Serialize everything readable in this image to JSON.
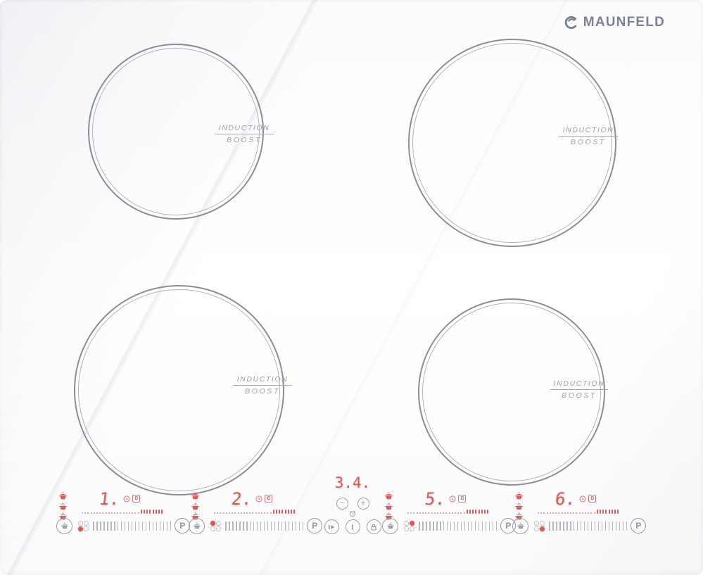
{
  "brand": {
    "name": "MAUNFELD"
  },
  "colors": {
    "accent_red": "#df5552",
    "ring_gray": "#8a8e99",
    "label_gray": "#9aa1ab",
    "logo_gray": "#7b8290"
  },
  "burners": [
    {
      "position": "back-left",
      "line1": "INDUCTION",
      "line2": "BOOST"
    },
    {
      "position": "back-right",
      "line1": "INDUCTION",
      "line2": "BOOST"
    },
    {
      "position": "front-left",
      "line1": "INDUCTION",
      "line2": "BOOST"
    },
    {
      "position": "front-right",
      "line1": "INDUCTION",
      "line2": "BOOST"
    }
  ],
  "control_panel": {
    "zones": [
      {
        "display": "1.",
        "badge": "B",
        "boost_label": "P",
        "zone_dot": "bottom-left"
      },
      {
        "display": "2.",
        "badge": "B",
        "boost_label": "P",
        "zone_dot": "top-left"
      },
      {
        "display": "5.",
        "badge": "B",
        "boost_label": "P",
        "zone_dot": "top-right"
      },
      {
        "display": "6.",
        "badge": "B",
        "boost_label": "P",
        "zone_dot": "bottom-right"
      }
    ],
    "timer": {
      "display": "3.4.",
      "minus_label": "−",
      "plus_label": "+"
    },
    "icons": {
      "keep_warm": "pot-icon",
      "zone_select": "pan-icon",
      "zone_timer": "clock-icon",
      "boost_badge": "letter-B-badge",
      "timer_center": "alarm-clock-icon",
      "pause": "play-pause-icon",
      "power": "power-line-icon",
      "lock": "padlock-icon",
      "boost": "letter-P-button"
    }
  }
}
